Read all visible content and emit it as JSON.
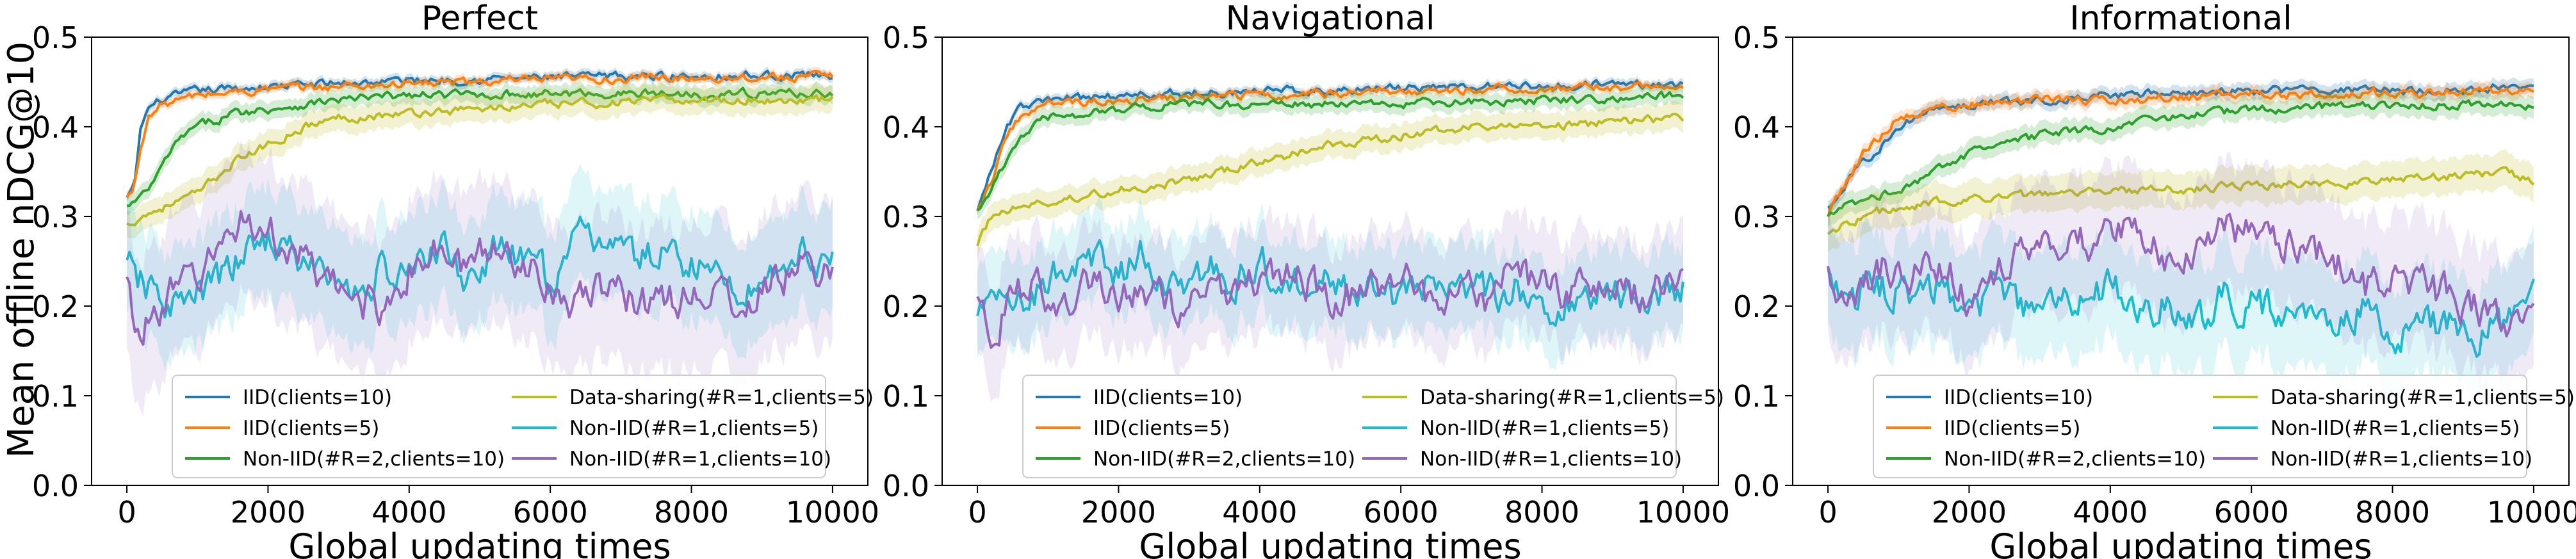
{
  "figure": {
    "ylabel": "Mean offline nDCG@10"
  },
  "legend_entries": [
    {
      "label": "IID(clients=10)",
      "color": "#1f77b4"
    },
    {
      "label": "IID(clients=5)",
      "color": "#ff7f0e"
    },
    {
      "label": "Non-IID(#R=2,clients=10)",
      "color": "#2ca02c"
    },
    {
      "label": "Data-sharing(#R=1,clients=5)",
      "color": "#bcbd22"
    },
    {
      "label": "Non-IID(#R=1,clients=5)",
      "color": "#17becf"
    },
    {
      "label": "Non-IID(#R=1,clients=10)",
      "color": "#9467bd"
    }
  ],
  "chart_data": [
    {
      "type": "line",
      "title": "Perfect",
      "xlabel": "Global updating times",
      "ylabel": "Mean offline nDCG@10",
      "xlim": [
        -500,
        10500
      ],
      "ylim": [
        0,
        0.5
      ],
      "xticks": [
        0,
        2000,
        4000,
        6000,
        8000,
        10000
      ],
      "yticks": [
        0.0,
        0.1,
        0.2,
        0.3,
        0.4,
        0.5
      ],
      "ytick_labels": [
        "0.0",
        "0.1",
        "0.2",
        "0.3",
        "0.4",
        "0.5"
      ],
      "legend_position": "lower-center",
      "series": [
        {
          "name": "IID(clients=10)",
          "color": "#1f77b4",
          "x": [
            0,
            100,
            200,
            300,
            500,
            1000,
            2000,
            4000,
            6000,
            8000,
            10000
          ],
          "y": [
            0.32,
            0.33,
            0.4,
            0.42,
            0.43,
            0.44,
            0.445,
            0.452,
            0.455,
            0.457,
            0.458
          ],
          "band": 0.005
        },
        {
          "name": "IID(clients=5)",
          "color": "#ff7f0e",
          "x": [
            0,
            100,
            200,
            300,
            500,
            1000,
            2000,
            4000,
            6000,
            8000,
            10000
          ],
          "y": [
            0.32,
            0.33,
            0.38,
            0.41,
            0.425,
            0.435,
            0.442,
            0.448,
            0.452,
            0.455,
            0.456
          ],
          "band": 0.005
        },
        {
          "name": "Non-IID(#R=2,clients=10)",
          "color": "#2ca02c",
          "x": [
            0,
            200,
            400,
            600,
            800,
            1000,
            1500,
            2000,
            3000,
            4000,
            6000,
            8000,
            10000
          ],
          "y": [
            0.31,
            0.32,
            0.34,
            0.37,
            0.39,
            0.4,
            0.415,
            0.42,
            0.43,
            0.435,
            0.437,
            0.437,
            0.438
          ],
          "band": 0.01
        },
        {
          "name": "Data-sharing(#R=1,clients=5)",
          "color": "#bcbd22",
          "x": [
            0,
            200,
            500,
            1000,
            1500,
            2000,
            2500,
            3000,
            4000,
            5000,
            6000,
            8000,
            10000
          ],
          "y": [
            0.29,
            0.3,
            0.31,
            0.325,
            0.36,
            0.38,
            0.4,
            0.41,
            0.415,
            0.42,
            0.425,
            0.43,
            0.43
          ],
          "band": 0.015
        },
        {
          "name": "Non-IID(#R=1,clients=5)",
          "color": "#17becf",
          "x": [
            0,
            400,
            800,
            1200,
            1600,
            2000,
            2400,
            2800,
            3200,
            3600,
            4000,
            4400,
            4800,
            5200,
            5600,
            6000,
            6400,
            6800,
            7200,
            7600,
            8000,
            8400,
            8800,
            9200,
            9600,
            10000
          ],
          "y": [
            0.24,
            0.21,
            0.2,
            0.22,
            0.25,
            0.28,
            0.25,
            0.24,
            0.21,
            0.24,
            0.23,
            0.27,
            0.23,
            0.26,
            0.25,
            0.23,
            0.27,
            0.28,
            0.25,
            0.26,
            0.25,
            0.23,
            0.22,
            0.24,
            0.26,
            0.25
          ],
          "band": 0.06
        },
        {
          "name": "Non-IID(#R=1,clients=10)",
          "color": "#9467bd",
          "x": [
            0,
            200,
            400,
            800,
            1200,
            1600,
            2000,
            2400,
            2800,
            3200,
            3600,
            4000,
            4400,
            4800,
            5200,
            5600,
            6000,
            6400,
            6800,
            7200,
            7600,
            8000,
            8400,
            8800,
            9200,
            9600,
            10000
          ],
          "y": [
            0.22,
            0.16,
            0.2,
            0.22,
            0.25,
            0.3,
            0.28,
            0.26,
            0.22,
            0.21,
            0.2,
            0.24,
            0.26,
            0.24,
            0.27,
            0.25,
            0.23,
            0.2,
            0.22,
            0.21,
            0.2,
            0.22,
            0.21,
            0.2,
            0.23,
            0.24,
            0.24
          ],
          "band": 0.08
        }
      ]
    },
    {
      "type": "line",
      "title": "Navigational",
      "xlabel": "Global updating times",
      "ylabel": "",
      "xlim": [
        -500,
        10500
      ],
      "ylim": [
        0,
        0.5
      ],
      "xticks": [
        0,
        2000,
        4000,
        6000,
        8000,
        10000
      ],
      "yticks": [
        0.0,
        0.1,
        0.2,
        0.3,
        0.4,
        0.5
      ],
      "ytick_labels": [
        "0.0",
        "0.1",
        "0.2",
        "0.3",
        "0.4",
        "0.5"
      ],
      "legend_position": "lower-center",
      "series": [
        {
          "name": "IID(clients=10)",
          "color": "#1f77b4",
          "x": [
            0,
            200,
            400,
            600,
            1000,
            2000,
            4000,
            6000,
            8000,
            10000
          ],
          "y": [
            0.31,
            0.35,
            0.4,
            0.42,
            0.43,
            0.435,
            0.44,
            0.443,
            0.446,
            0.448
          ],
          "band": 0.005
        },
        {
          "name": "IID(clients=5)",
          "color": "#ff7f0e",
          "x": [
            0,
            200,
            400,
            600,
            1000,
            2000,
            4000,
            6000,
            8000,
            10000
          ],
          "y": [
            0.31,
            0.34,
            0.39,
            0.41,
            0.425,
            0.43,
            0.435,
            0.44,
            0.443,
            0.445
          ],
          "band": 0.005
        },
        {
          "name": "Non-IID(#R=2,clients=10)",
          "color": "#2ca02c",
          "x": [
            0,
            200,
            400,
            600,
            800,
            1000,
            1500,
            2000,
            3000,
            4000,
            6000,
            8000,
            10000
          ],
          "y": [
            0.31,
            0.33,
            0.36,
            0.39,
            0.4,
            0.41,
            0.415,
            0.42,
            0.425,
            0.425,
            0.425,
            0.43,
            0.435
          ],
          "band": 0.01
        },
        {
          "name": "Data-sharing(#R=1,clients=5)",
          "color": "#bcbd22",
          "x": [
            0,
            200,
            500,
            1000,
            2000,
            3000,
            4000,
            5000,
            6000,
            7000,
            8000,
            9000,
            10000
          ],
          "y": [
            0.27,
            0.3,
            0.31,
            0.315,
            0.33,
            0.34,
            0.36,
            0.38,
            0.39,
            0.4,
            0.4,
            0.405,
            0.41
          ],
          "band": 0.015
        },
        {
          "name": "Non-IID(#R=1,clients=5)",
          "color": "#17becf",
          "x": [
            0,
            400,
            800,
            1200,
            1600,
            2000,
            2400,
            2800,
            3200,
            3600,
            4000,
            4400,
            4800,
            5200,
            5600,
            6000,
            6400,
            6800,
            7200,
            7600,
            8000,
            8400,
            8800,
            9200,
            9600,
            10000
          ],
          "y": [
            0.2,
            0.22,
            0.21,
            0.24,
            0.25,
            0.24,
            0.26,
            0.22,
            0.24,
            0.23,
            0.25,
            0.22,
            0.24,
            0.22,
            0.23,
            0.21,
            0.22,
            0.24,
            0.21,
            0.22,
            0.2,
            0.21,
            0.22,
            0.21,
            0.22,
            0.22
          ],
          "band": 0.05
        },
        {
          "name": "Non-IID(#R=1,clients=10)",
          "color": "#9467bd",
          "x": [
            0,
            200,
            400,
            800,
            1200,
            1600,
            2000,
            2400,
            2800,
            3200,
            3600,
            4000,
            4400,
            4800,
            5200,
            5600,
            6000,
            6400,
            6800,
            7200,
            7600,
            8000,
            8400,
            8800,
            9200,
            9600,
            10000
          ],
          "y": [
            0.22,
            0.17,
            0.2,
            0.22,
            0.21,
            0.23,
            0.21,
            0.22,
            0.2,
            0.22,
            0.21,
            0.23,
            0.24,
            0.22,
            0.21,
            0.22,
            0.23,
            0.21,
            0.22,
            0.21,
            0.24,
            0.22,
            0.21,
            0.22,
            0.21,
            0.22,
            0.22
          ],
          "band": 0.06
        }
      ]
    },
    {
      "type": "line",
      "title": "Informational",
      "xlabel": "Global updating times",
      "ylabel": "",
      "xlim": [
        -500,
        10500
      ],
      "ylim": [
        0,
        0.5
      ],
      "xticks": [
        0,
        2000,
        4000,
        6000,
        8000,
        10000
      ],
      "yticks": [
        0.0,
        0.1,
        0.2,
        0.3,
        0.4,
        0.5
      ],
      "ytick_labels": [
        "0.0",
        "0.1",
        "0.2",
        "0.3",
        "0.4",
        "0.5"
      ],
      "legend_position": "lower-center",
      "series": [
        {
          "name": "IID(clients=10)",
          "color": "#1f77b4",
          "x": [
            0,
            200,
            500,
            1000,
            1500,
            2000,
            3000,
            4000,
            6000,
            8000,
            10000
          ],
          "y": [
            0.31,
            0.33,
            0.36,
            0.4,
            0.42,
            0.425,
            0.43,
            0.435,
            0.44,
            0.44,
            0.445
          ],
          "band": 0.008
        },
        {
          "name": "IID(clients=5)",
          "color": "#ff7f0e",
          "x": [
            0,
            200,
            500,
            1000,
            1500,
            2000,
            3000,
            4000,
            6000,
            8000,
            10000
          ],
          "y": [
            0.3,
            0.33,
            0.37,
            0.41,
            0.42,
            0.425,
            0.43,
            0.43,
            0.435,
            0.438,
            0.44
          ],
          "band": 0.008
        },
        {
          "name": "Non-IID(#R=2,clients=10)",
          "color": "#2ca02c",
          "x": [
            0,
            200,
            500,
            1000,
            1500,
            2000,
            2500,
            3000,
            4000,
            5000,
            6000,
            8000,
            10000
          ],
          "y": [
            0.3,
            0.31,
            0.32,
            0.33,
            0.35,
            0.37,
            0.38,
            0.39,
            0.4,
            0.41,
            0.42,
            0.425,
            0.425
          ],
          "band": 0.012
        },
        {
          "name": "Data-sharing(#R=1,clients=5)",
          "color": "#bcbd22",
          "x": [
            0,
            200,
            500,
            1000,
            2000,
            3000,
            4000,
            5000,
            6000,
            7000,
            8000,
            9000,
            9500,
            10000
          ],
          "y": [
            0.28,
            0.29,
            0.3,
            0.31,
            0.32,
            0.325,
            0.33,
            0.33,
            0.335,
            0.335,
            0.34,
            0.345,
            0.35,
            0.34
          ],
          "band": 0.02
        },
        {
          "name": "Non-IID(#R=1,clients=5)",
          "color": "#17becf",
          "x": [
            0,
            400,
            800,
            1200,
            1600,
            2000,
            2400,
            2800,
            3200,
            3600,
            4000,
            4400,
            4800,
            5200,
            5600,
            6000,
            6400,
            6800,
            7200,
            7600,
            8000,
            8400,
            8800,
            9200,
            9600,
            10000
          ],
          "y": [
            0.24,
            0.21,
            0.22,
            0.21,
            0.22,
            0.2,
            0.21,
            0.19,
            0.2,
            0.21,
            0.22,
            0.19,
            0.2,
            0.18,
            0.21,
            0.2,
            0.19,
            0.2,
            0.19,
            0.2,
            0.17,
            0.17,
            0.18,
            0.17,
            0.18,
            0.2
          ],
          "band": 0.06
        },
        {
          "name": "Non-IID(#R=1,clients=10)",
          "color": "#9467bd",
          "x": [
            0,
            200,
            400,
            800,
            1200,
            1600,
            2000,
            2400,
            2800,
            3200,
            3600,
            4000,
            4400,
            4800,
            5200,
            5600,
            6000,
            6400,
            6800,
            7200,
            7600,
            8000,
            8400,
            8800,
            9200,
            9600,
            10000
          ],
          "y": [
            0.24,
            0.2,
            0.22,
            0.24,
            0.23,
            0.25,
            0.21,
            0.24,
            0.26,
            0.28,
            0.27,
            0.29,
            0.27,
            0.26,
            0.27,
            0.28,
            0.29,
            0.26,
            0.27,
            0.25,
            0.22,
            0.24,
            0.22,
            0.21,
            0.2,
            0.19,
            0.18
          ],
          "band": 0.07
        }
      ]
    }
  ]
}
